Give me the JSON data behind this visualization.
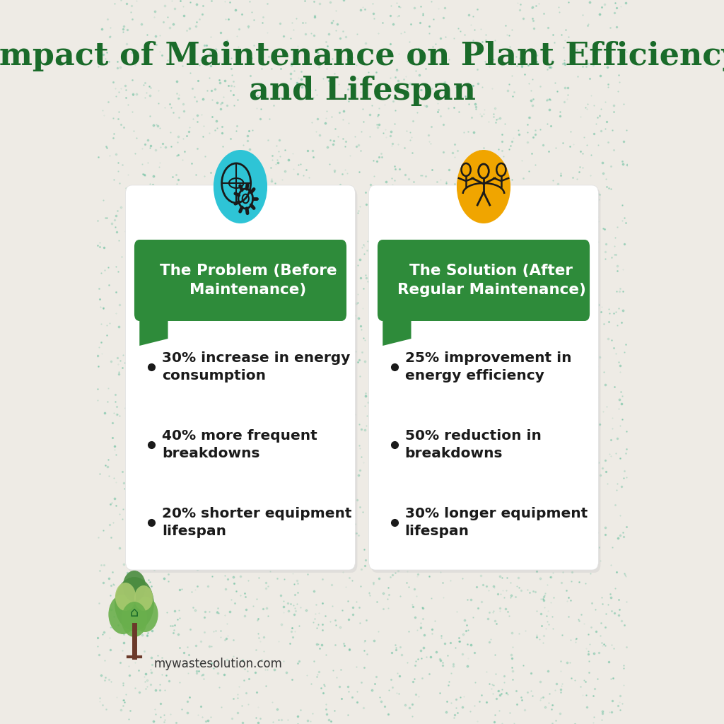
{
  "title_line1": "Impact of Maintenance on Plant Efficiency",
  "title_line2": "and Lifespan",
  "title_color": "#1a6b2a",
  "background_color": "#eeebe5",
  "card_bg": "#ffffff",
  "header_bg": "#2e8b3a",
  "header_text_color": "#ffffff",
  "body_text_color": "#1a1a1a",
  "left_icon_color": "#2ec4d6",
  "right_icon_color": "#f0a500",
  "left_header": "The Problem (Before\nMaintenance)",
  "right_header": "The Solution (After\nRegular Maintenance)",
  "left_bullets": [
    "30% increase in energy\nconsumption",
    "40% more frequent\nbreakdowns",
    "20% shorter equipment\nlifespan"
  ],
  "right_bullets": [
    "25% improvement in\nenergy efficiency",
    "50% reduction in\nbreakdowns",
    "30% longer equipment\nlifespan"
  ],
  "watermark": "mywastesolution.com",
  "dot_color": "#5aba96"
}
